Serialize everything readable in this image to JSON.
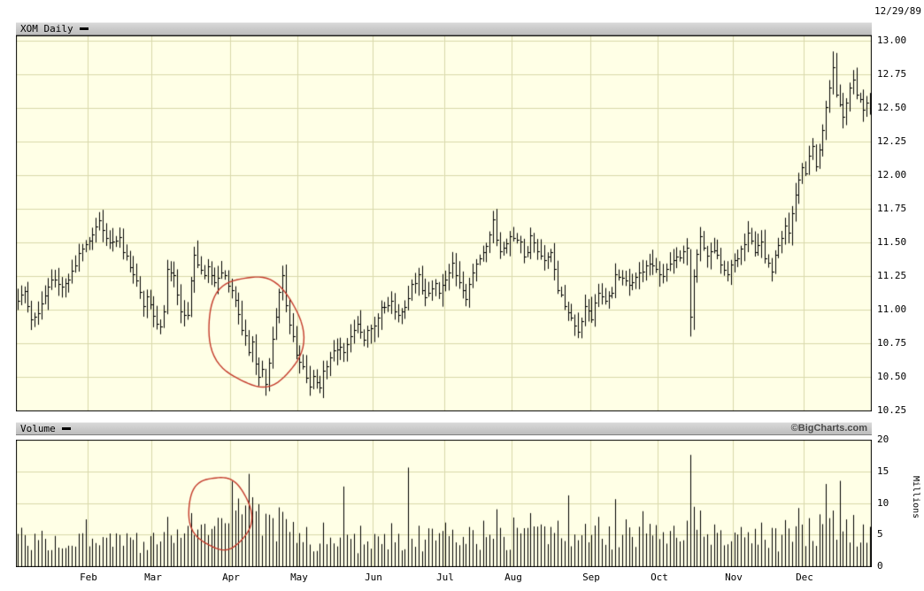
{
  "price_panel": {
    "title": "XOM Daily",
    "date": "12/29/89",
    "axis_ticks": [
      "13.00",
      "12.75",
      "12.50",
      "12.25",
      "12.00",
      "11.75",
      "11.50",
      "11.25",
      "11.00",
      "10.75",
      "10.50",
      "10.25"
    ]
  },
  "volume_panel": {
    "title": "Volume",
    "credit": "©BigCharts.com",
    "axis_ticks": [
      "20",
      "15",
      "10",
      "5",
      "0"
    ],
    "unit_label": "Millions"
  },
  "colors": {
    "chart_bg": "#ffffe6",
    "grid": "#d9d9ab",
    "bar": "#000000",
    "border": "#000000",
    "header_bg": "#c8c8c8",
    "annotation": "#c43a2a"
  },
  "chart_data": {
    "type": "ohlc",
    "symbol": "XOM",
    "interval": "Daily",
    "as_of": "12/29/89",
    "source": "©BigCharts.com",
    "price_axis": {
      "min": 10.25,
      "max": 13.0,
      "step": 0.25,
      "side": "right"
    },
    "volume_axis": {
      "min": 0,
      "max": 20,
      "step": 5,
      "units": "Millions",
      "side": "right"
    },
    "months": [
      "Feb",
      "Mar",
      "Apr",
      "May",
      "Jun",
      "Jul",
      "Aug",
      "Sep",
      "Oct",
      "Nov",
      "Dec"
    ],
    "month_start_days": [
      21,
      40,
      63,
      83,
      105,
      126,
      146,
      169,
      189,
      211,
      232
    ],
    "num_days": 252,
    "close_anchors": [
      [
        0,
        11.05
      ],
      [
        2,
        11.15
      ],
      [
        4,
        10.92
      ],
      [
        6,
        11.0
      ],
      [
        8,
        11.1
      ],
      [
        11,
        11.25
      ],
      [
        13,
        11.15
      ],
      [
        16,
        11.3
      ],
      [
        19,
        11.45
      ],
      [
        21,
        11.5
      ],
      [
        24,
        11.65
      ],
      [
        26,
        11.55
      ],
      [
        28,
        11.5
      ],
      [
        30,
        11.52
      ],
      [
        32,
        11.38
      ],
      [
        34,
        11.28
      ],
      [
        36,
        11.15
      ],
      [
        37,
        11.05
      ],
      [
        38,
        11.12
      ],
      [
        40,
        10.95
      ],
      [
        42,
        10.88
      ],
      [
        43,
        11.0
      ],
      [
        44,
        11.3
      ],
      [
        46,
        11.25
      ],
      [
        47,
        11.12
      ],
      [
        48,
        11.0
      ],
      [
        50,
        10.95
      ],
      [
        51,
        11.2
      ],
      [
        52,
        11.42
      ],
      [
        53,
        11.35
      ],
      [
        55,
        11.25
      ],
      [
        56,
        11.3
      ],
      [
        58,
        11.22
      ],
      [
        60,
        11.3
      ],
      [
        62,
        11.2
      ],
      [
        63,
        11.15
      ],
      [
        65,
        10.95
      ],
      [
        66,
        10.85
      ],
      [
        67,
        10.78
      ],
      [
        68,
        10.7
      ],
      [
        69,
        10.76
      ],
      [
        70,
        10.6
      ],
      [
        71,
        10.52
      ],
      [
        72,
        10.56
      ],
      [
        73,
        10.45
      ],
      [
        74,
        10.62
      ],
      [
        75,
        10.78
      ],
      [
        76,
        10.95
      ],
      [
        77,
        11.12
      ],
      [
        78,
        11.25
      ],
      [
        79,
        11.02
      ],
      [
        80,
        10.88
      ],
      [
        81,
        10.8
      ],
      [
        82,
        10.68
      ],
      [
        83,
        10.6
      ],
      [
        85,
        10.5
      ],
      [
        86,
        10.45
      ],
      [
        87,
        10.52
      ],
      [
        89,
        10.44
      ],
      [
        90,
        10.55
      ],
      [
        92,
        10.62
      ],
      [
        94,
        10.72
      ],
      [
        96,
        10.68
      ],
      [
        98,
        10.82
      ],
      [
        100,
        10.88
      ],
      [
        102,
        10.8
      ],
      [
        104,
        10.85
      ],
      [
        105,
        10.9
      ],
      [
        107,
        11.0
      ],
      [
        110,
        11.08
      ],
      [
        112,
        10.95
      ],
      [
        114,
        11.05
      ],
      [
        116,
        11.18
      ],
      [
        118,
        11.25
      ],
      [
        120,
        11.1
      ],
      [
        123,
        11.2
      ],
      [
        124,
        11.15
      ],
      [
        126,
        11.2
      ],
      [
        128,
        11.32
      ],
      [
        130,
        11.22
      ],
      [
        132,
        11.08
      ],
      [
        134,
        11.3
      ],
      [
        137,
        11.45
      ],
      [
        139,
        11.55
      ],
      [
        140,
        11.65
      ],
      [
        141,
        11.5
      ],
      [
        142,
        11.42
      ],
      [
        144,
        11.5
      ],
      [
        146,
        11.55
      ],
      [
        148,
        11.5
      ],
      [
        149,
        11.38
      ],
      [
        150,
        11.45
      ],
      [
        151,
        11.55
      ],
      [
        153,
        11.42
      ],
      [
        155,
        11.35
      ],
      [
        157,
        11.42
      ],
      [
        159,
        11.15
      ],
      [
        161,
        11.05
      ],
      [
        163,
        10.92
      ],
      [
        165,
        10.85
      ],
      [
        167,
        11.02
      ],
      [
        169,
        10.95
      ],
      [
        171,
        11.1
      ],
      [
        173,
        11.05
      ],
      [
        175,
        11.15
      ],
      [
        176,
        11.28
      ],
      [
        178,
        11.25
      ],
      [
        180,
        11.18
      ],
      [
        182,
        11.25
      ],
      [
        184,
        11.3
      ],
      [
        186,
        11.35
      ],
      [
        188,
        11.28
      ],
      [
        189,
        11.25
      ],
      [
        191,
        11.3
      ],
      [
        193,
        11.36
      ],
      [
        195,
        11.4
      ],
      [
        197,
        11.45
      ],
      [
        198,
        10.95
      ],
      [
        199,
        11.25
      ],
      [
        200,
        11.42
      ],
      [
        201,
        11.55
      ],
      [
        203,
        11.4
      ],
      [
        205,
        11.45
      ],
      [
        207,
        11.35
      ],
      [
        209,
        11.28
      ],
      [
        211,
        11.35
      ],
      [
        213,
        11.45
      ],
      [
        215,
        11.55
      ],
      [
        217,
        11.45
      ],
      [
        219,
        11.5
      ],
      [
        220,
        11.4
      ],
      [
        222,
        11.28
      ],
      [
        224,
        11.48
      ],
      [
        226,
        11.6
      ],
      [
        227,
        11.55
      ],
      [
        228,
        11.7
      ],
      [
        229,
        11.85
      ],
      [
        230,
        11.95
      ],
      [
        231,
        12.05
      ],
      [
        232,
        12.0
      ],
      [
        233,
        12.15
      ],
      [
        234,
        12.2
      ],
      [
        235,
        12.05
      ],
      [
        236,
        12.18
      ],
      [
        237,
        12.32
      ],
      [
        238,
        12.5
      ],
      [
        239,
        12.65
      ],
      [
        240,
        12.8
      ],
      [
        241,
        12.62
      ],
      [
        242,
        12.52
      ],
      [
        243,
        12.45
      ],
      [
        244,
        12.55
      ],
      [
        245,
        12.65
      ],
      [
        246,
        12.7
      ],
      [
        247,
        12.6
      ],
      [
        248,
        12.55
      ],
      [
        249,
        12.5
      ],
      [
        250,
        12.56
      ],
      [
        251,
        12.5
      ]
    ],
    "ohlc_overrides": [
      {
        "d": 73,
        "o": 10.52,
        "h": 10.56,
        "l": 10.36,
        "c": 10.45
      },
      {
        "d": 198,
        "o": 11.42,
        "h": 11.45,
        "l": 10.8,
        "c": 10.95
      },
      {
        "d": 199,
        "o": 10.9,
        "h": 11.3,
        "l": 10.85,
        "c": 11.25
      },
      {
        "d": 240,
        "o": 12.66,
        "h": 12.92,
        "l": 12.6,
        "c": 12.8
      }
    ],
    "volume_base_anchors": [
      [
        0,
        4.2
      ],
      [
        15,
        3.8
      ],
      [
        30,
        3.5
      ],
      [
        45,
        3.8
      ],
      [
        60,
        5.5
      ],
      [
        70,
        6.5
      ],
      [
        80,
        5.0
      ],
      [
        90,
        3.8
      ],
      [
        105,
        3.6
      ],
      [
        120,
        4.2
      ],
      [
        135,
        4.0
      ],
      [
        150,
        4.5
      ],
      [
        165,
        4.2
      ],
      [
        180,
        4.6
      ],
      [
        195,
        4.4
      ],
      [
        210,
        3.8
      ],
      [
        225,
        4.2
      ],
      [
        240,
        5.5
      ],
      [
        251,
        4.5
      ]
    ],
    "volume_spikes": [
      [
        20,
        7.4
      ],
      [
        44,
        7.8
      ],
      [
        51,
        8.4
      ],
      [
        57,
        5.9
      ],
      [
        61,
        6.8
      ],
      [
        63,
        13.4
      ],
      [
        64,
        8.8
      ],
      [
        65,
        10.7
      ],
      [
        66,
        8.2
      ],
      [
        67,
        9.6
      ],
      [
        68,
        14.6
      ],
      [
        69,
        10.9
      ],
      [
        70,
        8.7
      ],
      [
        71,
        9.8
      ],
      [
        73,
        8.3
      ],
      [
        75,
        7.6
      ],
      [
        77,
        9.3
      ],
      [
        78,
        8.6
      ],
      [
        81,
        7.0
      ],
      [
        85,
        6.2
      ],
      [
        90,
        6.9
      ],
      [
        96,
        12.6
      ],
      [
        101,
        6.4
      ],
      [
        110,
        6.8
      ],
      [
        115,
        15.6
      ],
      [
        118,
        6.4
      ],
      [
        126,
        6.9
      ],
      [
        133,
        6.2
      ],
      [
        137,
        7.2
      ],
      [
        141,
        9.0
      ],
      [
        146,
        7.7
      ],
      [
        151,
        8.4
      ],
      [
        155,
        6.3
      ],
      [
        159,
        7.2
      ],
      [
        162,
        11.2
      ],
      [
        167,
        6.7
      ],
      [
        171,
        7.8
      ],
      [
        174,
        6.3
      ],
      [
        176,
        10.6
      ],
      [
        179,
        7.4
      ],
      [
        184,
        8.7
      ],
      [
        188,
        6.5
      ],
      [
        193,
        6.4
      ],
      [
        197,
        7.2
      ],
      [
        198,
        17.6
      ],
      [
        199,
        9.4
      ],
      [
        201,
        8.8
      ],
      [
        205,
        6.6
      ],
      [
        213,
        6.2
      ],
      [
        219,
        6.9
      ],
      [
        226,
        7.3
      ],
      [
        230,
        9.2
      ],
      [
        233,
        7.6
      ],
      [
        236,
        8.2
      ],
      [
        238,
        13.0
      ],
      [
        240,
        8.8
      ],
      [
        242,
        13.5
      ],
      [
        244,
        7.4
      ],
      [
        246,
        8.1
      ],
      [
        249,
        6.6
      ]
    ],
    "annotations": [
      {
        "panel": "price",
        "shape": "ellipse",
        "cx_day": 70,
        "cy_value": 10.84,
        "rx_days": 13.2,
        "ry_value": 0.43,
        "rotation_deg": -12,
        "color": "#c43a2a"
      },
      {
        "panel": "volume",
        "shape": "ellipse",
        "cx_day": 59.5,
        "cy_value": 8.4,
        "rx_days": 8.8,
        "ry_value": 6.0,
        "rotation_deg": -10,
        "color": "#c43a2a"
      }
    ]
  }
}
